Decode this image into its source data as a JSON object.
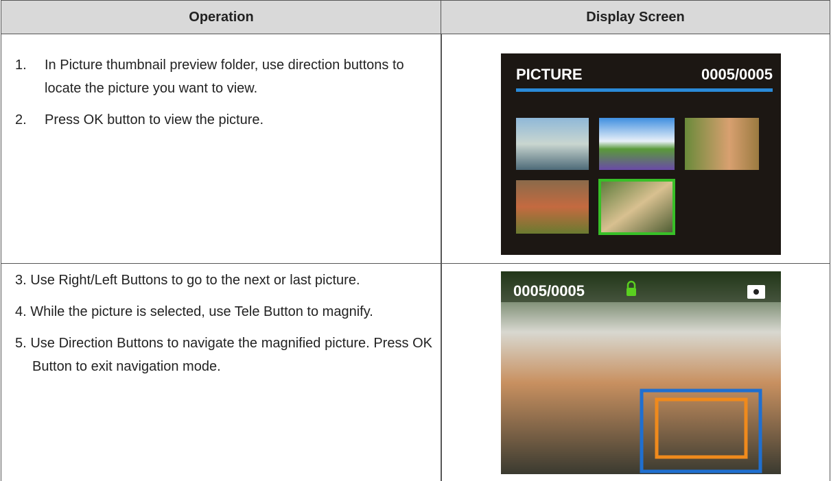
{
  "table": {
    "headers": [
      "Operation",
      "Display Screen"
    ],
    "rows": [
      {
        "steps": [
          {
            "number": "1.",
            "text": "In Picture thumbnail preview folder, use direction buttons to locate the picture you want to view."
          },
          {
            "number": "2.",
            "text": "Press OK button to view the picture."
          }
        ],
        "screen": {
          "title": "PICTURE",
          "counter": "0005/0005"
        }
      },
      {
        "steps": [
          {
            "number": "3.",
            "text": "Use Right/Left Buttons to go to the next or last picture."
          },
          {
            "number": "4.",
            "text": "While the picture is selected, use Tele Button to magnify."
          },
          {
            "number": "5.",
            "text": "Use Direction Buttons to navigate the magnified picture. Press OK Button to exit navigation mode."
          }
        ],
        "screen": {
          "counter": "0005/0005"
        }
      }
    ]
  }
}
